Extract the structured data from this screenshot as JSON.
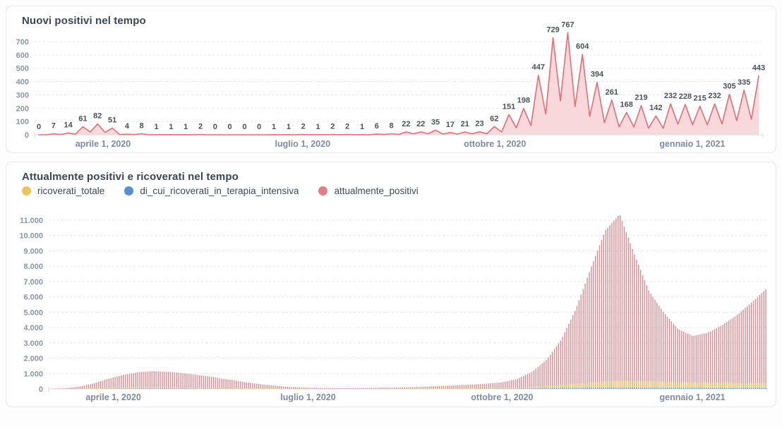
{
  "cards": [
    {
      "title": "Nuovi positivi nel tempo"
    },
    {
      "title": "Attualmente positivi e ricoverati nel tempo"
    }
  ],
  "legend": [
    {
      "label": "ricoverati_totale",
      "color": "#eec558"
    },
    {
      "label": "di_cui_ricoverati_in_terapia_intensiva",
      "color": "#5490d3"
    },
    {
      "label": "attualmente_positivi",
      "color": "#e57d85"
    }
  ],
  "chart_data": [
    {
      "type": "area",
      "title": "Nuovi positivi nel tempo",
      "show_point_labels": true,
      "series": [
        {
          "name": "nuovi_positivi",
          "color": "#e66d76",
          "fill": "#f8d8da",
          "values": [
            0,
            7,
            14,
            61,
            82,
            51,
            4,
            8,
            1,
            1,
            1,
            2,
            0,
            0,
            0,
            0,
            1,
            1,
            2,
            1,
            2,
            2,
            1,
            6,
            8,
            22,
            22,
            35,
            17,
            21,
            23,
            62,
            151,
            198,
            447,
            729,
            767,
            604,
            394,
            261,
            168,
            219,
            142,
            232,
            228,
            215,
            232,
            305,
            335,
            443
          ]
        }
      ],
      "ylim": [
        0,
        780
      ],
      "yticks": {
        "values": [
          0,
          100,
          200,
          300,
          400,
          500,
          600,
          700
        ],
        "labels": [
          "0",
          "100",
          "200",
          "300",
          "400",
          "500",
          "600",
          "700"
        ]
      },
      "xticks": {
        "fractions": [
          0.094,
          0.368,
          0.632,
          0.903
        ],
        "labels": [
          "aprile 1, 2020",
          "luglio 1, 2020",
          "ottobre 1, 2020",
          "gennaio 1, 2021"
        ]
      },
      "grid": "dashed-horizontal",
      "legend_position": "none"
    },
    {
      "type": "bar",
      "title": "Attualmente positivi e ricoverati nel tempo",
      "n_bars": 350,
      "series": [
        {
          "name": "attualmente_positivi",
          "color": "#e08990",
          "anchors_weekly": [
            10,
            40,
            150,
            350,
            650,
            900,
            1080,
            1150,
            1120,
            1040,
            930,
            800,
            650,
            500,
            360,
            250,
            160,
            100,
            65,
            50,
            45,
            50,
            60,
            75,
            95,
            120,
            155,
            195,
            240,
            290,
            350,
            430,
            650,
            1100,
            1900,
            3200,
            5200,
            7800,
            10300,
            11400,
            8800,
            6400,
            5000,
            3900,
            3450,
            3650,
            4150,
            4800,
            5600,
            6500
          ]
        },
        {
          "name": "ricoverati_totale",
          "color": "#efbd5e",
          "anchors_weekly": [
            2,
            5,
            15,
            40,
            80,
            110,
            130,
            135,
            130,
            120,
            105,
            90,
            75,
            60,
            45,
            35,
            25,
            18,
            12,
            10,
            8,
            8,
            10,
            12,
            15,
            20,
            25,
            30,
            40,
            50,
            60,
            80,
            110,
            150,
            200,
            280,
            350,
            420,
            480,
            520,
            530,
            500,
            470,
            440,
            420,
            410,
            400,
            390,
            380,
            370
          ]
        },
        {
          "name": "di_cui_ricoverati_in_terapia_intensiva",
          "color": "#5490d3",
          "anchors_weekly": [
            0,
            1,
            3,
            8,
            15,
            22,
            26,
            28,
            26,
            24,
            21,
            18,
            15,
            12,
            10,
            8,
            6,
            5,
            4,
            3,
            2,
            2,
            3,
            3,
            4,
            5,
            6,
            7,
            9,
            11,
            13,
            16,
            22,
            30,
            40,
            50,
            60,
            68,
            72,
            74,
            72,
            68,
            64,
            60,
            56,
            53,
            50,
            48,
            46,
            44
          ]
        }
      ],
      "ylim": [
        0,
        11600
      ],
      "yticks": {
        "values": [
          0,
          1000,
          2000,
          3000,
          4000,
          5000,
          6000,
          7000,
          8000,
          9000,
          10000,
          11000
        ],
        "labels": [
          "0",
          "1.000",
          "2.000",
          "3.000",
          "4.000",
          "5.000",
          "6.000",
          "7.000",
          "8.000",
          "9.000",
          "10.000",
          "11.000"
        ]
      },
      "xticks": {
        "fractions": [
          0.09,
          0.361,
          0.631,
          0.896
        ],
        "labels": [
          "aprile 1, 2020",
          "luglio 1, 2020",
          "ottobre 1, 2020",
          "gennaio 1, 2021"
        ]
      },
      "grid": "dashed-horizontal",
      "legend_position": "top"
    }
  ]
}
